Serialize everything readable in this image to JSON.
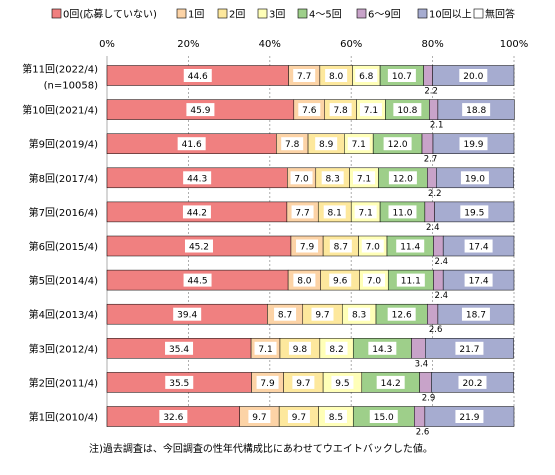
{
  "chart_data": {
    "type": "bar",
    "orientation": "horizontal",
    "stacked": true,
    "normalized_percent": true,
    "xlim": [
      0,
      100
    ],
    "x_ticks": [
      "0%",
      "20%",
      "40%",
      "60%",
      "80%",
      "100%"
    ],
    "grid": true,
    "legend_position": "top",
    "categories": [
      [
        "第11回(2022/4)",
        "(n=10058)"
      ],
      [
        "第10回(2021/4)"
      ],
      [
        "第9回(2019/4)"
      ],
      [
        "第8回(2017/4)"
      ],
      [
        "第7回(2016/4)"
      ],
      [
        "第6回(2015/4)"
      ],
      [
        "第5回(2014/4)"
      ],
      [
        "第4回(2013/4)"
      ],
      [
        "第3回(2012/4)"
      ],
      [
        "第2回(2011/4)"
      ],
      [
        "第1回(2010/4)"
      ]
    ],
    "series": [
      {
        "name": "0回(応募していない)",
        "color": "#f08080",
        "values": [
          44.6,
          45.9,
          41.6,
          44.3,
          44.2,
          45.2,
          44.5,
          39.4,
          35.4,
          35.5,
          32.6
        ]
      },
      {
        "name": "1回",
        "color": "#fcd3a6",
        "values": [
          7.7,
          7.6,
          7.8,
          7.0,
          7.7,
          7.9,
          8.0,
          8.7,
          7.1,
          7.9,
          9.7
        ]
      },
      {
        "name": "2回",
        "color": "#fde89d",
        "values": [
          8.0,
          7.8,
          8.9,
          8.3,
          8.1,
          8.7,
          9.6,
          9.7,
          9.8,
          9.7,
          9.7
        ]
      },
      {
        "name": "3回",
        "color": "#ffffb8",
        "values": [
          6.8,
          7.1,
          7.1,
          7.1,
          7.1,
          7.0,
          7.0,
          8.3,
          8.2,
          9.5,
          8.5
        ]
      },
      {
        "name": "4～5回",
        "color": "#9ecf8a",
        "values": [
          10.7,
          10.8,
          12.0,
          12.0,
          11.0,
          11.4,
          11.1,
          12.6,
          14.3,
          14.2,
          15.0
        ]
      },
      {
        "name": "6～9回",
        "color": "#c8a3c9",
        "values": [
          2.2,
          2.1,
          2.7,
          2.2,
          2.4,
          2.4,
          2.4,
          2.6,
          3.4,
          2.9,
          2.6
        ]
      },
      {
        "name": "10回以上",
        "color": "#a6acd0",
        "values": [
          20.0,
          18.8,
          19.9,
          19.0,
          19.5,
          17.4,
          17.4,
          18.7,
          21.7,
          20.2,
          21.9
        ]
      },
      {
        "name": "無回答",
        "color": "#ffffff",
        "values": [
          0,
          0,
          0,
          0,
          0,
          0,
          0,
          0,
          0,
          0,
          0
        ]
      }
    ],
    "annotations": {
      "footnote": "注)過去調査は、今回調査の性年代構成比にあわせてウエイトバックした値。"
    }
  }
}
